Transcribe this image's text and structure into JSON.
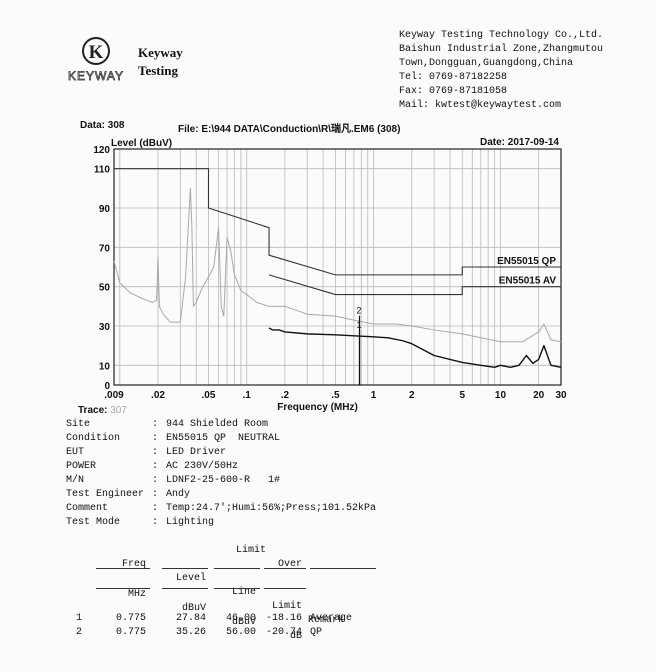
{
  "company": {
    "brand_line1": "Keyway",
    "brand_line2": "Testing",
    "logo_letter": "K",
    "logo_text": "KEYWAY",
    "lines": [
      "Keyway Testing Technology Co.,Ltd.",
      "Baishun Industrial Zone,Zhangmutou",
      "Town,Dongguan,Guangdong,China",
      "Tel: 0769-87182258",
      "Fax: 0769-87181058",
      "Mail: kwtest@keywaytest.com"
    ]
  },
  "header": {
    "data": "Data: 308",
    "file": "File: E:\\944 DATA\\Conduction\\R\\瑞凡.EM6  (308)",
    "date": "Date: 2017-09-14"
  },
  "chart_data": {
    "type": "line",
    "ylabel": "Level (dBuV)",
    "xlabel": "Frequency (MHz)",
    "x_scale": "log",
    "xlim": [
      0.009,
      30
    ],
    "ylim": [
      0,
      120
    ],
    "x_ticks": [
      ".009",
      ".02",
      ".05",
      ".1",
      ".2",
      ".5",
      "1",
      "2",
      "5",
      "10",
      "20",
      "30"
    ],
    "y_ticks": [
      "0",
      "10",
      "30",
      "50",
      "70",
      "90",
      "110",
      "120"
    ],
    "grid": true,
    "limits": [
      {
        "name": "EN55015 QP",
        "x": [
          0.009,
          0.05,
          0.05,
          0.15,
          0.15,
          0.5,
          5,
          5,
          30
        ],
        "y": [
          110,
          110,
          90,
          80,
          66,
          56,
          56,
          60,
          60
        ]
      },
      {
        "name": "EN55015 AV",
        "x": [
          0.15,
          0.5,
          5,
          5,
          30
        ],
        "y": [
          56,
          46,
          46,
          50,
          50
        ]
      }
    ],
    "series": [
      {
        "name": "",
        "x": [
          0.009,
          0.01,
          0.012,
          0.015,
          0.018,
          0.0195,
          0.02,
          0.0205,
          0.022,
          0.025,
          0.03,
          0.033,
          0.036,
          0.037,
          0.038,
          0.04,
          0.045,
          0.05,
          0.055,
          0.06,
          0.063,
          0.066,
          0.07,
          0.075,
          0.08,
          0.085,
          0.09,
          0.1,
          0.12,
          0.15,
          0.2,
          0.3,
          0.5,
          0.7,
          1,
          1.5,
          2,
          3,
          5,
          7,
          10,
          15,
          20,
          22,
          25,
          30
        ],
        "y": [
          63,
          52,
          47,
          44,
          42,
          43,
          65,
          40,
          36,
          32,
          32,
          55,
          100,
          80,
          40,
          42,
          50,
          55,
          60,
          80,
          40,
          35,
          75,
          68,
          56,
          52,
          48,
          46,
          42,
          40,
          40,
          36,
          35,
          33,
          31,
          31,
          30,
          28,
          26,
          24,
          22,
          22,
          27,
          31,
          23,
          22
        ]
      },
      {
        "name": "",
        "x": [
          0.15,
          0.16,
          0.18,
          0.2,
          0.3,
          0.5,
          0.7,
          1,
          1.3,
          1.7,
          2,
          3,
          5,
          7,
          9,
          10,
          12,
          14,
          16,
          18,
          20,
          22,
          25,
          30
        ],
        "y": [
          29,
          28,
          28,
          27,
          26,
          25.5,
          25,
          24.5,
          24,
          22.5,
          21,
          15,
          11.5,
          10,
          9,
          10,
          9,
          10,
          15,
          11,
          13,
          20,
          10,
          9
        ]
      }
    ],
    "markers": [
      {
        "label": "2",
        "x": 0.775,
        "y": 35.26
      },
      {
        "label": "1",
        "x": 0.775,
        "y": 27.84
      }
    ]
  },
  "trace": {
    "label": "Trace:",
    "value": "307"
  },
  "info": [
    {
      "key": "Site",
      "value": "944 Shielded Room"
    },
    {
      "key": "Condition",
      "value": "EN55015 QP  NEUTRAL"
    },
    {
      "key": "EUT",
      "value": "LED Driver"
    },
    {
      "key": "POWER",
      "value": "AC 230V/50Hz"
    },
    {
      "key": "M/N",
      "value": "LDNF2-25-600-R   1#"
    },
    {
      "key": "Test Engineer",
      "value": "Andy"
    },
    {
      "key": "Comment",
      "value": "Temp:24.7';Humi:56%;Press;101.52kPa"
    },
    {
      "key": "Test Mode",
      "value": "Lighting"
    }
  ],
  "table": {
    "headers_top": {
      "limit": "Limit",
      "over": "Over"
    },
    "headers": {
      "freq": "Freq",
      "level": "Level",
      "line": "Line",
      "limit": "Limit",
      "remark": "Remark"
    },
    "units": {
      "freq": "MHz",
      "level": "dBuV",
      "line": "dBuV",
      "limit": "dB"
    },
    "rows": [
      {
        "no": "1",
        "freq": "0.775",
        "level": "27.84",
        "line": "46.00",
        "limit": "-18.16",
        "remark": "Average"
      },
      {
        "no": "2",
        "freq": "0.775",
        "level": "35.26",
        "line": "56.00",
        "limit": "-20.74",
        "remark": "QP"
      }
    ]
  }
}
